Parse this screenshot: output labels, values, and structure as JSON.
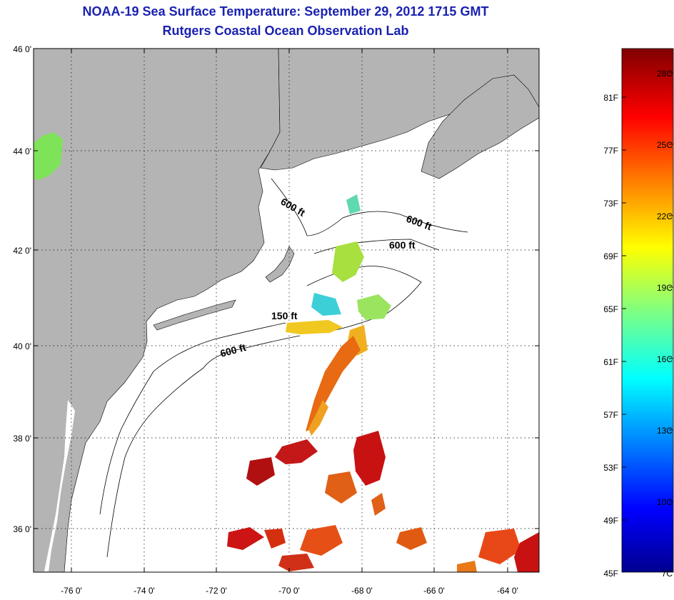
{
  "header": {
    "title": "NOAA-19 Sea Surface Temperature:  September 29, 2012 1715 GMT",
    "subtitle": "Rutgers Coastal Ocean Observation Lab"
  },
  "map": {
    "lon_range": [
      -77,
      -63
    ],
    "lat_range": [
      35,
      46
    ],
    "lat_ticks": [
      {
        "value": 46,
        "label": "46 0'"
      },
      {
        "value": 44,
        "label": "44 0'"
      },
      {
        "value": 42,
        "label": "42 0'"
      },
      {
        "value": 40,
        "label": "40 0'"
      },
      {
        "value": 38,
        "label": "38 0'"
      },
      {
        "value": 36,
        "label": "36 0'"
      }
    ],
    "lon_ticks": [
      {
        "value": -76,
        "label": "-76 0'"
      },
      {
        "value": -74,
        "label": "-74 0'"
      },
      {
        "value": -72,
        "label": "-72 0'"
      },
      {
        "value": -70,
        "label": "-70 0'"
      },
      {
        "value": -68,
        "label": "-68 0'"
      },
      {
        "value": -66,
        "label": "-66 0'"
      },
      {
        "value": -64,
        "label": "-64 0'"
      }
    ],
    "contour_labels": [
      "600 ft",
      "600 ft",
      "600 ft",
      "150 ft",
      "600 ft"
    ],
    "land_color": "#b4b4b4",
    "ocean_color": "#ffffff",
    "grid": true
  },
  "colorbar": {
    "fahrenheit_labels": [
      "81F",
      "77F",
      "73F",
      "69F",
      "65F",
      "61F",
      "57F",
      "53F",
      "49F",
      "45F"
    ],
    "celsius_labels": [
      "28C",
      "25C",
      "22C",
      "19C",
      "16C",
      "13C",
      "10C",
      "7C"
    ],
    "range_c": [
      7,
      29
    ]
  }
}
